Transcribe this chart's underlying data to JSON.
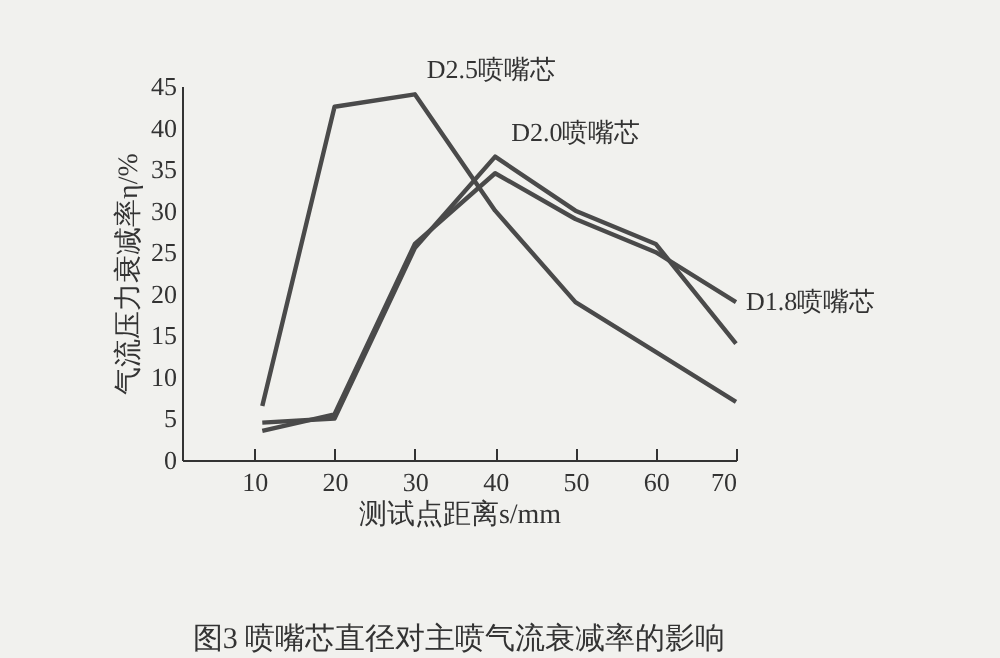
{
  "chart_data": {
    "type": "line",
    "xlabel": "测试点距离s/mm",
    "ylabel": "气流压力衰减率η/%",
    "x": [
      11,
      20,
      30,
      40,
      50,
      60,
      70
    ],
    "series": [
      {
        "name": "D2.5喷嘴芯",
        "color": "#4a4a4a",
        "values": [
          6.5,
          42.5,
          44,
          30,
          19,
          13,
          7
        ]
      },
      {
        "name": "D2.0喷嘴芯",
        "color": "#4a4a4a",
        "values": [
          4.5,
          5,
          25.5,
          36.5,
          30,
          26,
          14
        ]
      },
      {
        "name": "D1.8喷嘴芯",
        "color": "#4a4a4a",
        "values": [
          3.5,
          5.5,
          26,
          34.5,
          29,
          25,
          19
        ]
      }
    ],
    "xlim": [
      1,
      70
    ],
    "xticks": [
      10,
      20,
      30,
      40,
      50,
      60,
      70
    ],
    "ylim": [
      0,
      45
    ],
    "yticks": [
      0,
      5,
      10,
      15,
      20,
      25,
      30,
      35,
      40,
      45
    ],
    "grid": false,
    "legend": false,
    "marker": "none",
    "line_style": "solid",
    "annotations": [
      "图3 喷嘴芯直径对主喷气流衰减率的影响"
    ]
  }
}
